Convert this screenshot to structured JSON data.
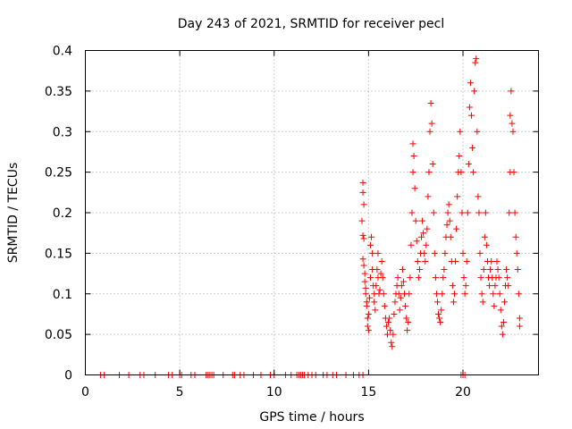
{
  "chart_data": {
    "type": "scatter",
    "title": "Day 243 of 2021, SRMTID for receiver pecl",
    "xlabel": "GPS time / hours",
    "ylabel": "SRMTID / TECUs",
    "xlim": [
      0,
      24
    ],
    "ylim": [
      0,
      0.4
    ],
    "x_ticks": [
      0,
      5,
      10,
      15,
      20
    ],
    "x_tick_labels": [
      "0",
      "5",
      "10",
      "15",
      "20"
    ],
    "y_ticks": [
      0,
      0.05,
      0.1,
      0.15,
      0.2,
      0.25,
      0.3,
      0.35,
      0.4
    ],
    "y_tick_labels": [
      "0",
      "0.05",
      "0.1",
      "0.15",
      "0.2",
      "0.25",
      "0.3",
      "0.35",
      "0.4"
    ],
    "grid": true,
    "marker": "plus",
    "color": "#ff0000",
    "series": [
      {
        "name": "SRMTID",
        "points": [
          [
            0.8,
            0
          ],
          [
            1.0,
            0
          ],
          [
            1.8,
            0
          ],
          [
            2.3,
            0
          ],
          [
            2.9,
            0
          ],
          [
            3.1,
            0
          ],
          [
            3.7,
            0
          ],
          [
            4.4,
            0
          ],
          [
            4.6,
            0
          ],
          [
            5.0,
            0
          ],
          [
            5.1,
            0
          ],
          [
            5.6,
            0
          ],
          [
            5.8,
            0
          ],
          [
            6.4,
            0
          ],
          [
            6.5,
            0
          ],
          [
            6.6,
            0
          ],
          [
            6.7,
            0
          ],
          [
            6.8,
            0
          ],
          [
            7.3,
            0
          ],
          [
            7.8,
            0
          ],
          [
            7.9,
            0
          ],
          [
            8.2,
            0
          ],
          [
            8.4,
            0
          ],
          [
            8.9,
            0
          ],
          [
            9.3,
            0
          ],
          [
            9.8,
            0
          ],
          [
            10.0,
            0
          ],
          [
            10.6,
            0
          ],
          [
            10.9,
            0
          ],
          [
            11.2,
            0
          ],
          [
            11.3,
            0
          ],
          [
            11.4,
            0
          ],
          [
            11.5,
            0
          ],
          [
            11.6,
            0
          ],
          [
            11.8,
            0
          ],
          [
            12.0,
            0
          ],
          [
            12.2,
            0
          ],
          [
            12.6,
            0
          ],
          [
            12.8,
            0
          ],
          [
            13.1,
            0
          ],
          [
            13.3,
            0
          ],
          [
            13.8,
            0
          ],
          [
            14.2,
            0
          ],
          [
            14.5,
            0
          ],
          [
            14.7,
            0
          ],
          [
            19.9,
            0
          ],
          [
            20.0,
            0
          ],
          [
            20.1,
            0
          ],
          [
            14.7,
            0.237
          ],
          [
            14.7,
            0.225
          ],
          [
            14.75,
            0.21
          ],
          [
            14.65,
            0.19
          ],
          [
            14.7,
            0.172
          ],
          [
            14.75,
            0.168
          ],
          [
            14.7,
            0.143
          ],
          [
            14.75,
            0.135
          ],
          [
            14.8,
            0.125
          ],
          [
            14.8,
            0.115
          ],
          [
            14.85,
            0.107
          ],
          [
            14.85,
            0.1
          ],
          [
            14.9,
            0.09
          ],
          [
            14.9,
            0.085
          ],
          [
            14.95,
            0.07
          ],
          [
            14.95,
            0.06
          ],
          [
            15.0,
            0.055
          ],
          [
            15.0,
            0.075
          ],
          [
            15.05,
            0.095
          ],
          [
            15.1,
            0.12
          ],
          [
            15.1,
            0.16
          ],
          [
            15.15,
            0.17
          ],
          [
            15.2,
            0.15
          ],
          [
            15.2,
            0.13
          ],
          [
            15.25,
            0.11
          ],
          [
            15.3,
            0.1
          ],
          [
            15.3,
            0.09
          ],
          [
            15.35,
            0.08
          ],
          [
            15.4,
            0.11
          ],
          [
            15.45,
            0.13
          ],
          [
            15.5,
            0.15
          ],
          [
            15.5,
            0.12
          ],
          [
            15.55,
            0.1
          ],
          [
            15.6,
            0.105
          ],
          [
            15.65,
            0.125
          ],
          [
            15.7,
            0.14
          ],
          [
            15.75,
            0.12
          ],
          [
            15.8,
            0.1
          ],
          [
            15.85,
            0.085
          ],
          [
            15.9,
            0.07
          ],
          [
            15.95,
            0.06
          ],
          [
            16.0,
            0.05
          ],
          [
            16.05,
            0.065
          ],
          [
            16.1,
            0.07
          ],
          [
            16.15,
            0.055
          ],
          [
            16.2,
            0.04
          ],
          [
            16.25,
            0.035
          ],
          [
            16.3,
            0.05
          ],
          [
            16.35,
            0.075
          ],
          [
            16.4,
            0.09
          ],
          [
            16.45,
            0.1
          ],
          [
            16.5,
            0.11
          ],
          [
            16.55,
            0.12
          ],
          [
            16.6,
            0.1
          ],
          [
            16.65,
            0.08
          ],
          [
            16.7,
            0.095
          ],
          [
            16.75,
            0.11
          ],
          [
            16.8,
            0.13
          ],
          [
            16.85,
            0.115
          ],
          [
            16.9,
            0.1
          ],
          [
            16.95,
            0.085
          ],
          [
            17.0,
            0.07
          ],
          [
            17.05,
            0.055
          ],
          [
            17.1,
            0.065
          ],
          [
            17.15,
            0.1
          ],
          [
            17.2,
            0.12
          ],
          [
            17.25,
            0.16
          ],
          [
            17.3,
            0.2
          ],
          [
            17.35,
            0.25
          ],
          [
            17.35,
            0.285
          ],
          [
            17.4,
            0.27
          ],
          [
            17.45,
            0.23
          ],
          [
            17.5,
            0.19
          ],
          [
            17.55,
            0.165
          ],
          [
            17.6,
            0.14
          ],
          [
            17.65,
            0.12
          ],
          [
            17.7,
            0.13
          ],
          [
            17.75,
            0.15
          ],
          [
            17.8,
            0.17
          ],
          [
            17.85,
            0.19
          ],
          [
            17.9,
            0.175
          ],
          [
            17.95,
            0.15
          ],
          [
            18.0,
            0.14
          ],
          [
            18.05,
            0.16
          ],
          [
            18.1,
            0.18
          ],
          [
            18.15,
            0.22
          ],
          [
            18.2,
            0.25
          ],
          [
            18.25,
            0.3
          ],
          [
            18.3,
            0.335
          ],
          [
            18.35,
            0.31
          ],
          [
            18.4,
            0.26
          ],
          [
            18.45,
            0.2
          ],
          [
            18.5,
            0.15
          ],
          [
            18.55,
            0.12
          ],
          [
            18.6,
            0.1
          ],
          [
            18.65,
            0.09
          ],
          [
            18.7,
            0.075
          ],
          [
            18.75,
            0.07
          ],
          [
            18.8,
            0.065
          ],
          [
            18.85,
            0.08
          ],
          [
            18.9,
            0.1
          ],
          [
            18.95,
            0.12
          ],
          [
            19.0,
            0.13
          ],
          [
            19.05,
            0.15
          ],
          [
            19.1,
            0.17
          ],
          [
            19.15,
            0.185
          ],
          [
            19.2,
            0.2
          ],
          [
            19.25,
            0.21
          ],
          [
            19.3,
            0.19
          ],
          [
            19.35,
            0.17
          ],
          [
            19.4,
            0.14
          ],
          [
            19.45,
            0.11
          ],
          [
            19.5,
            0.09
          ],
          [
            19.55,
            0.1
          ],
          [
            19.6,
            0.14
          ],
          [
            19.65,
            0.18
          ],
          [
            19.7,
            0.22
          ],
          [
            19.75,
            0.25
          ],
          [
            19.8,
            0.27
          ],
          [
            19.85,
            0.3
          ],
          [
            19.9,
            0.25
          ],
          [
            19.95,
            0.2
          ],
          [
            20.0,
            0.15
          ],
          [
            20.05,
            0.12
          ],
          [
            20.1,
            0.1
          ],
          [
            20.15,
            0.11
          ],
          [
            20.2,
            0.14
          ],
          [
            20.25,
            0.2
          ],
          [
            20.3,
            0.26
          ],
          [
            20.35,
            0.33
          ],
          [
            20.4,
            0.36
          ],
          [
            20.45,
            0.32
          ],
          [
            20.5,
            0.28
          ],
          [
            20.55,
            0.25
          ],
          [
            20.6,
            0.35
          ],
          [
            20.65,
            0.385
          ],
          [
            20.7,
            0.39
          ],
          [
            20.75,
            0.3
          ],
          [
            20.8,
            0.22
          ],
          [
            20.85,
            0.2
          ],
          [
            20.9,
            0.15
          ],
          [
            20.95,
            0.12
          ],
          [
            21.0,
            0.1
          ],
          [
            21.05,
            0.09
          ],
          [
            21.1,
            0.13
          ],
          [
            21.15,
            0.17
          ],
          [
            21.2,
            0.2
          ],
          [
            21.25,
            0.16
          ],
          [
            21.3,
            0.14
          ],
          [
            21.35,
            0.12
          ],
          [
            21.4,
            0.11
          ],
          [
            21.45,
            0.13
          ],
          [
            21.5,
            0.14
          ],
          [
            21.55,
            0.12
          ],
          [
            21.6,
            0.1
          ],
          [
            21.65,
            0.085
          ],
          [
            21.7,
            0.11
          ],
          [
            21.75,
            0.12
          ],
          [
            21.8,
            0.14
          ],
          [
            21.85,
            0.13
          ],
          [
            21.9,
            0.12
          ],
          [
            21.95,
            0.1
          ],
          [
            22.0,
            0.08
          ],
          [
            22.05,
            0.06
          ],
          [
            22.1,
            0.05
          ],
          [
            22.15,
            0.065
          ],
          [
            22.2,
            0.09
          ],
          [
            22.25,
            0.11
          ],
          [
            22.3,
            0.13
          ],
          [
            22.35,
            0.12
          ],
          [
            22.4,
            0.11
          ],
          [
            22.45,
            0.2
          ],
          [
            22.5,
            0.25
          ],
          [
            22.5,
            0.32
          ],
          [
            22.55,
            0.35
          ],
          [
            22.6,
            0.31
          ],
          [
            22.65,
            0.3
          ],
          [
            22.7,
            0.25
          ],
          [
            22.75,
            0.2
          ],
          [
            22.8,
            0.17
          ],
          [
            22.85,
            0.15
          ],
          [
            22.9,
            0.13
          ],
          [
            22.95,
            0.1
          ],
          [
            23.0,
            0.07
          ],
          [
            23.0,
            0.06
          ]
        ]
      }
    ]
  }
}
